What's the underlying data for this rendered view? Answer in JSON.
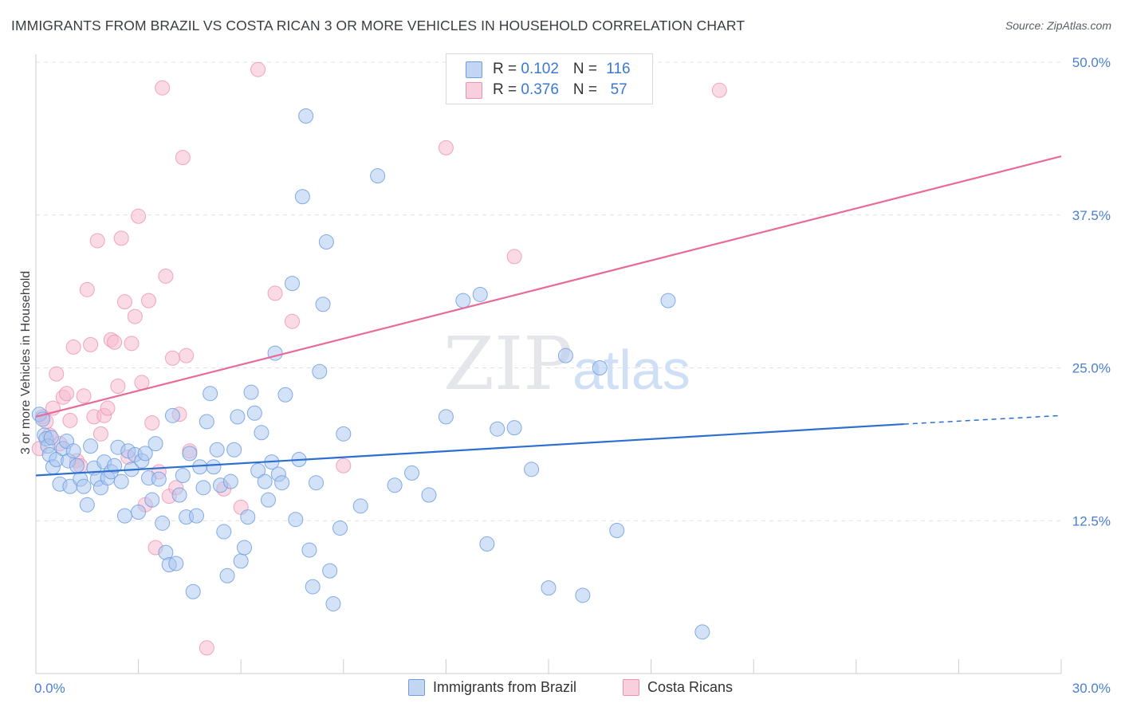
{
  "title": "IMMIGRANTS FROM BRAZIL VS COSTA RICAN 3 OR MORE VEHICLES IN HOUSEHOLD CORRELATION CHART",
  "source": "Source: ZipAtlas.com",
  "watermark": {
    "zip": "ZIP",
    "atlas": "atlas"
  },
  "colors": {
    "blue_fill": "#a9c6f0",
    "blue_stroke": "#6f9ee0",
    "blue_line": "#2d6fd1",
    "pink_fill": "#f6bcd0",
    "pink_stroke": "#ee91b1",
    "pink_line": "#e86a98",
    "tick_text": "#4a7fd0",
    "grid": "#dde0e6"
  },
  "legend": {
    "rows": [
      {
        "r_label": "R = ",
        "r_value": "0.102",
        "n_label": "N = ",
        "n_value": "116"
      },
      {
        "r_label": "R = ",
        "r_value": "0.376",
        "n_label": "N = ",
        "n_value": " 57"
      }
    ]
  },
  "bottom_legend": [
    "Immigrants from Brazil",
    "Costa Ricans"
  ],
  "chart_data": {
    "type": "scatter",
    "title": "IMMIGRANTS FROM BRAZIL VS COSTA RICAN 3 OR MORE VEHICLES IN HOUSEHOLD CORRELATION CHART",
    "xlabel": "",
    "ylabel": "3 or more Vehicles in Household",
    "xlim": [
      0,
      30
    ],
    "ylim": [
      0,
      50
    ],
    "x_tick_labels": [
      "0.0%",
      "30.0%"
    ],
    "y_ticks": [
      12.5,
      25.0,
      37.5,
      50.0
    ],
    "y_tick_labels": [
      "12.5%",
      "25.0%",
      "37.5%",
      "50.0%"
    ],
    "grid": "horizontal dashed",
    "legend_position": "top-center",
    "series": [
      {
        "name": "Immigrants from Brazil",
        "r": 0.102,
        "n": 116,
        "trend": {
          "x": [
            0,
            25.4
          ],
          "y": [
            16.2,
            20.4
          ],
          "dashed_extension_to": [
            30,
            21.1
          ]
        },
        "points": [
          [
            0.1,
            21.2
          ],
          [
            0.2,
            20.8
          ],
          [
            0.25,
            19.5
          ],
          [
            0.3,
            19.2
          ],
          [
            0.35,
            18.6
          ],
          [
            0.4,
            17.9
          ],
          [
            0.45,
            19.3
          ],
          [
            0.5,
            16.9
          ],
          [
            0.6,
            17.5
          ],
          [
            0.7,
            15.5
          ],
          [
            0.8,
            18.4
          ],
          [
            0.9,
            19.0
          ],
          [
            0.95,
            17.4
          ],
          [
            1.0,
            15.3
          ],
          [
            1.1,
            18.2
          ],
          [
            1.2,
            17.0
          ],
          [
            1.3,
            15.9
          ],
          [
            1.4,
            15.3
          ],
          [
            1.5,
            13.8
          ],
          [
            1.6,
            18.6
          ],
          [
            1.7,
            16.8
          ],
          [
            1.8,
            15.9
          ],
          [
            1.9,
            15.2
          ],
          [
            2.0,
            17.3
          ],
          [
            2.1,
            16.0
          ],
          [
            2.2,
            16.5
          ],
          [
            2.3,
            17.0
          ],
          [
            2.4,
            18.5
          ],
          [
            2.5,
            15.7
          ],
          [
            2.6,
            12.9
          ],
          [
            2.7,
            18.2
          ],
          [
            2.8,
            16.7
          ],
          [
            2.9,
            17.9
          ],
          [
            3.0,
            13.2
          ],
          [
            3.1,
            17.4
          ],
          [
            3.2,
            18.0
          ],
          [
            3.3,
            16.0
          ],
          [
            3.4,
            14.2
          ],
          [
            3.5,
            18.8
          ],
          [
            3.6,
            15.9
          ],
          [
            3.7,
            12.3
          ],
          [
            3.8,
            9.9
          ],
          [
            3.9,
            8.9
          ],
          [
            4.0,
            21.1
          ],
          [
            4.1,
            9.0
          ],
          [
            4.2,
            14.6
          ],
          [
            4.3,
            16.2
          ],
          [
            4.4,
            12.8
          ],
          [
            4.5,
            18.0
          ],
          [
            4.6,
            6.7
          ],
          [
            4.7,
            12.9
          ],
          [
            4.8,
            16.9
          ],
          [
            4.9,
            15.2
          ],
          [
            5.0,
            20.6
          ],
          [
            5.1,
            22.9
          ],
          [
            5.2,
            16.9
          ],
          [
            5.3,
            18.3
          ],
          [
            5.4,
            15.4
          ],
          [
            5.5,
            11.6
          ],
          [
            5.6,
            8.0
          ],
          [
            5.7,
            15.7
          ],
          [
            5.8,
            18.3
          ],
          [
            5.9,
            21.0
          ],
          [
            6.0,
            9.2
          ],
          [
            6.1,
            10.3
          ],
          [
            6.2,
            12.8
          ],
          [
            6.3,
            23.0
          ],
          [
            6.4,
            21.3
          ],
          [
            6.5,
            16.6
          ],
          [
            6.6,
            19.7
          ],
          [
            6.7,
            15.7
          ],
          [
            6.8,
            14.2
          ],
          [
            6.9,
            17.3
          ],
          [
            7.0,
            26.2
          ],
          [
            7.1,
            16.3
          ],
          [
            7.2,
            15.6
          ],
          [
            7.3,
            22.8
          ],
          [
            7.5,
            31.9
          ],
          [
            7.6,
            12.6
          ],
          [
            7.7,
            17.5
          ],
          [
            7.8,
            39.0
          ],
          [
            7.9,
            45.6
          ],
          [
            8.0,
            10.1
          ],
          [
            8.1,
            7.1
          ],
          [
            8.2,
            15.6
          ],
          [
            8.3,
            24.7
          ],
          [
            8.4,
            30.2
          ],
          [
            8.5,
            35.3
          ],
          [
            8.6,
            8.4
          ],
          [
            8.7,
            5.7
          ],
          [
            8.9,
            11.9
          ],
          [
            9.0,
            19.6
          ],
          [
            9.5,
            13.7
          ],
          [
            10.0,
            40.7
          ],
          [
            10.5,
            15.4
          ],
          [
            11.0,
            16.4
          ],
          [
            11.5,
            14.6
          ],
          [
            12.0,
            21.0
          ],
          [
            12.5,
            30.5
          ],
          [
            13.0,
            31.0
          ],
          [
            13.2,
            10.6
          ],
          [
            13.5,
            20.0
          ],
          [
            14.0,
            20.1
          ],
          [
            14.5,
            16.7
          ],
          [
            15.0,
            7.0
          ],
          [
            15.5,
            26.0
          ],
          [
            16.0,
            6.4
          ],
          [
            16.5,
            25.0
          ],
          [
            17.0,
            11.7
          ],
          [
            18.5,
            30.5
          ],
          [
            19.5,
            3.4
          ]
        ]
      },
      {
        "name": "Costa Ricans",
        "r": 0.376,
        "n": 57,
        "trend": {
          "x": [
            0,
            30
          ],
          "y": [
            21.0,
            42.3
          ]
        },
        "points": [
          [
            0.1,
            18.4
          ],
          [
            0.2,
            21.0
          ],
          [
            0.3,
            20.6
          ],
          [
            0.4,
            19.5
          ],
          [
            0.5,
            21.7
          ],
          [
            0.6,
            24.5
          ],
          [
            0.7,
            18.8
          ],
          [
            0.8,
            22.6
          ],
          [
            0.9,
            22.9
          ],
          [
            1.0,
            20.7
          ],
          [
            1.1,
            26.7
          ],
          [
            1.2,
            17.4
          ],
          [
            1.3,
            17.0
          ],
          [
            1.4,
            22.7
          ],
          [
            1.5,
            31.4
          ],
          [
            1.6,
            26.9
          ],
          [
            1.7,
            21.0
          ],
          [
            1.8,
            35.4
          ],
          [
            1.9,
            19.6
          ],
          [
            2.0,
            21.1
          ],
          [
            2.1,
            21.7
          ],
          [
            2.2,
            27.3
          ],
          [
            2.3,
            27.1
          ],
          [
            2.4,
            23.5
          ],
          [
            2.5,
            35.6
          ],
          [
            2.6,
            30.4
          ],
          [
            2.7,
            17.7
          ],
          [
            2.8,
            27.0
          ],
          [
            2.9,
            29.2
          ],
          [
            3.0,
            37.4
          ],
          [
            3.1,
            23.8
          ],
          [
            3.2,
            13.8
          ],
          [
            3.3,
            30.5
          ],
          [
            3.4,
            20.5
          ],
          [
            3.5,
            10.3
          ],
          [
            3.6,
            16.5
          ],
          [
            3.7,
            47.9
          ],
          [
            3.8,
            32.5
          ],
          [
            3.9,
            14.5
          ],
          [
            4.0,
            25.8
          ],
          [
            4.1,
            15.2
          ],
          [
            4.2,
            21.2
          ],
          [
            4.3,
            42.2
          ],
          [
            4.4,
            26.0
          ],
          [
            4.5,
            18.2
          ],
          [
            5.0,
            2.1
          ],
          [
            5.5,
            15.1
          ],
          [
            6.0,
            13.6
          ],
          [
            6.5,
            49.4
          ],
          [
            7.0,
            31.1
          ],
          [
            7.5,
            28.8
          ],
          [
            9.0,
            17.0
          ],
          [
            12.0,
            43.0
          ],
          [
            14.0,
            34.1
          ],
          [
            20.0,
            47.7
          ]
        ]
      }
    ]
  }
}
